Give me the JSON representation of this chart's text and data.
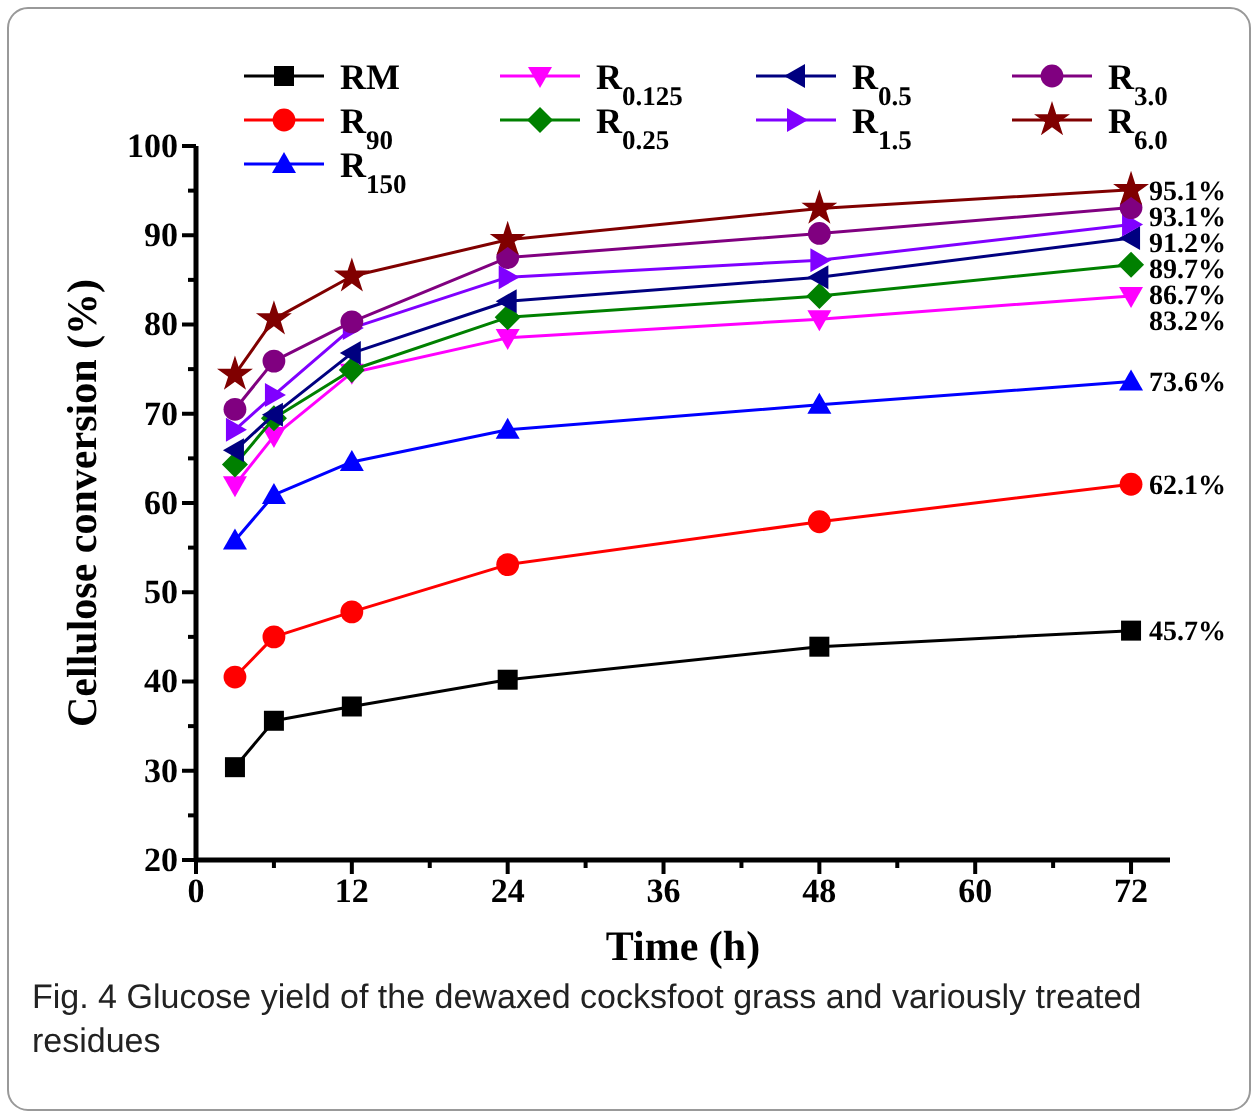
{
  "chart_data": {
    "type": "line",
    "xlabel": "Time (h)",
    "ylabel": "Cellulose conversion (%)",
    "annotations": [
      "Fig. 4  Glucose yield of the dewaxed cocksfoot grass and variously treated residues"
    ],
    "xlim": [
      0,
      75
    ],
    "xticks": [
      0,
      {
        "value": 6,
        "label": null
      },
      12,
      {
        "value": 18,
        "label": null
      },
      24,
      {
        "value": 30,
        "label": null
      },
      36,
      {
        "value": 42,
        "label": null
      },
      48,
      {
        "value": 54,
        "label": null
      },
      60,
      {
        "value": 66,
        "label": null
      },
      72
    ],
    "ylim": [
      20,
      100
    ],
    "yticks": [
      20,
      {
        "value": 25,
        "label": null
      },
      30,
      {
        "value": 35,
        "label": null
      },
      40,
      {
        "value": 45,
        "label": null
      },
      50,
      {
        "value": 55,
        "label": null
      },
      60,
      {
        "value": 65,
        "label": null
      },
      70,
      {
        "value": 75,
        "label": null
      },
      80,
      {
        "value": 85,
        "label": null
      },
      90,
      {
        "value": 95,
        "label": null
      },
      100
    ],
    "x": [
      3,
      6,
      12,
      24,
      48,
      72
    ],
    "legend": "top",
    "grid": false,
    "series": [
      {
        "name": "RM",
        "color": "#000000",
        "marker": "square",
        "values": [
          30.4,
          35.6,
          37.2,
          40.2,
          43.9,
          45.7
        ],
        "value_labels": [
          null,
          null,
          null,
          null,
          null,
          "45.7%"
        ]
      },
      {
        "name": "R$_{90}$",
        "color": "#ff0000",
        "marker": "circle",
        "values": [
          40.5,
          45.0,
          47.8,
          53.1,
          57.9,
          62.1
        ],
        "value_labels": [
          null,
          null,
          null,
          null,
          null,
          "62.1%"
        ]
      },
      {
        "name": "R$_{150}$",
        "color": "#0000ff",
        "marker": "triangle",
        "values": [
          55.8,
          60.9,
          64.6,
          68.2,
          71.0,
          73.6
        ],
        "value_labels": [
          null,
          null,
          null,
          null,
          null,
          "73.6%"
        ]
      },
      {
        "name": "R$_{0.125}$",
        "color": "#ff00ff",
        "marker": "triangle-down",
        "values": [
          62.0,
          67.5,
          74.6,
          78.5,
          80.6,
          83.2
        ],
        "value_labels": [
          null,
          null,
          null,
          null,
          null,
          "83.2%"
        ]
      },
      {
        "name": "R$_{0.25}$",
        "color": "#008000",
        "marker": "diamond",
        "values": [
          64.3,
          69.5,
          74.9,
          80.8,
          83.2,
          86.7
        ],
        "value_labels": [
          null,
          null,
          null,
          null,
          null,
          "86.7%"
        ]
      },
      {
        "name": "R$_{0.5}$",
        "color": "#000080",
        "marker": "triangle-left",
        "values": [
          65.9,
          69.9,
          76.8,
          82.6,
          85.3,
          89.7
        ],
        "value_labels": [
          null,
          null,
          null,
          null,
          null,
          "89.7%"
        ]
      },
      {
        "name": "R$_{1.5}$",
        "color": "#8000ff",
        "marker": "triangle-right",
        "values": [
          68.2,
          72.1,
          79.6,
          85.3,
          87.2,
          91.2
        ],
        "value_labels": [
          null,
          null,
          null,
          null,
          null,
          "91.2%"
        ]
      },
      {
        "name": "R$_{3.0}$",
        "color": "#800080",
        "marker": "circle",
        "values": [
          70.5,
          75.9,
          80.3,
          87.5,
          90.2,
          93.1
        ],
        "value_labels": [
          null,
          null,
          null,
          null,
          null,
          "93.1%"
        ]
      },
      {
        "name": "R$_{6.0}$",
        "color": "#800000",
        "marker": "star",
        "values": [
          74.4,
          80.6,
          85.4,
          89.5,
          93.0,
          95.1
        ],
        "value_labels": [
          null,
          null,
          null,
          null,
          null,
          "95.1%"
        ]
      }
    ]
  }
}
